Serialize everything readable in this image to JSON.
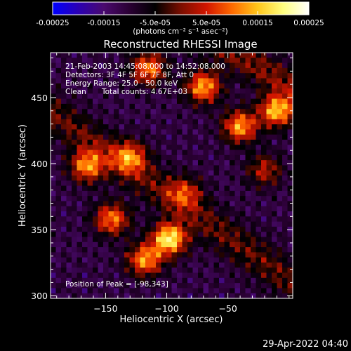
{
  "colors": {
    "background": "#000000",
    "foreground": "#ffffff",
    "colormap": [
      "#0000ff",
      "#2b00b3",
      "#4a0a6e",
      "#2a0033",
      "#000000",
      "#7a0e00",
      "#d11500",
      "#ff6a00",
      "#ffc61a",
      "#ffff80",
      "#ffffff"
    ]
  },
  "colorbar": {
    "range": [
      -0.00025,
      0.00025
    ],
    "tick_labels": [
      "-0.00025",
      "-0.00015",
      "-5.0e-05",
      "5.0e-05",
      "0.00015",
      "0.00025"
    ],
    "unit_label": "(photons cm⁻² s⁻¹ asec⁻²)"
  },
  "chart_data": {
    "type": "heatmap",
    "title": "Reconstructed RHESSI Image",
    "xlabel": "Heliocentric X (arcsec)",
    "ylabel": "Heliocentric Y (arcsec)",
    "xlim": [
      -195,
      3
    ],
    "ylim": [
      298,
      484
    ],
    "x_ticks": [
      -150,
      -100,
      -50
    ],
    "x_tick_labels": [
      "−150",
      "−100",
      "−50"
    ],
    "y_ticks": [
      300,
      350,
      400,
      450
    ],
    "y_tick_labels": [
      "300",
      "350",
      "400",
      "450"
    ],
    "peak_position": [
      -98,
      343
    ],
    "bright_regions": [
      {
        "x": -98,
        "y": 343,
        "rel": 1.0
      },
      {
        "x": -118,
        "y": 327,
        "rel": 0.75
      },
      {
        "x": -145,
        "y": 358,
        "rel": 0.7
      },
      {
        "x": -165,
        "y": 398,
        "rel": 0.72
      },
      {
        "x": -130,
        "y": 405,
        "rel": 0.6
      },
      {
        "x": -10,
        "y": 440,
        "rel": 0.85
      },
      {
        "x": -40,
        "y": 428,
        "rel": 0.78
      },
      {
        "x": -70,
        "y": 458,
        "rel": 0.8
      },
      {
        "x": -115,
        "y": 472,
        "rel": 0.7
      },
      {
        "x": -20,
        "y": 395,
        "rel": 0.45
      },
      {
        "x": -85,
        "y": 378,
        "rel": 0.45
      }
    ]
  },
  "info": {
    "time_range": "21-Feb-2003 14:45:08.000 to 14:52:08.000",
    "detectors": "Detectors: 3F 4F 5F 6F 7F 8F, Att 0",
    "energy_range": "Energy Range: 25.0 - 50.0 keV",
    "method": "Clean",
    "total_counts": "Total counts: 4.67E+03",
    "peak": "Position of Peak = [-98,343]"
  },
  "footer": {
    "date": "29-Apr-2022 04:40"
  }
}
